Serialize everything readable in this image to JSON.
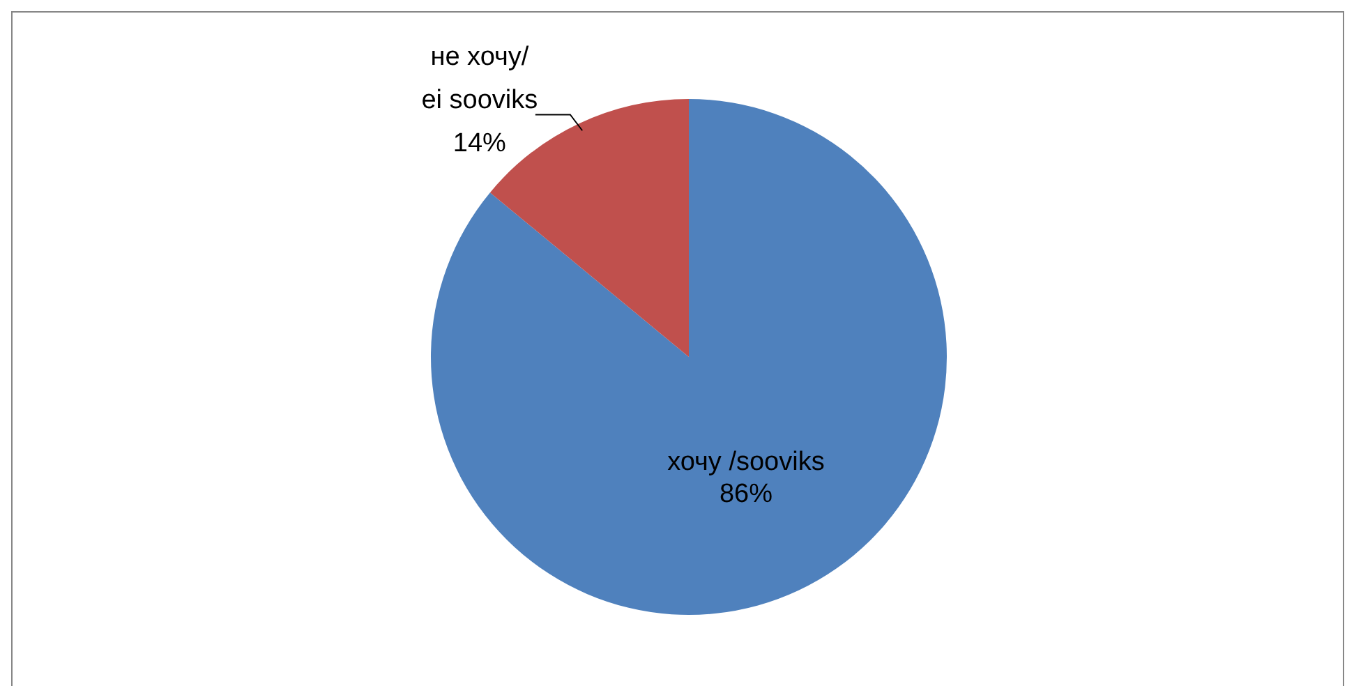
{
  "chart_data": {
    "type": "pie",
    "categories": [
      "хочу /sooviks",
      "не хочу/\nei sooviks"
    ],
    "values": [
      86,
      14
    ],
    "value_labels": [
      "86%",
      "14%"
    ],
    "colors": [
      "#4f81bd",
      "#c0504d"
    ],
    "data_labels": true,
    "legend": false
  }
}
